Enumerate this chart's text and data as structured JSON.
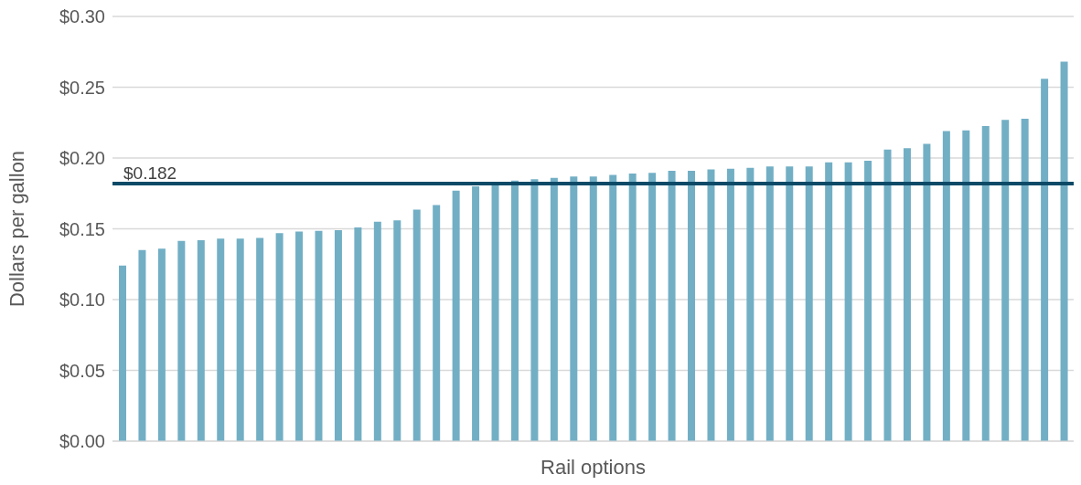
{
  "chart_data": {
    "type": "bar",
    "xlabel": "Rail options",
    "ylabel": "Dollars per gallon",
    "categories": [
      null,
      null,
      null,
      null,
      null,
      null,
      null,
      null,
      null,
      null,
      null,
      null,
      null,
      null,
      null,
      null,
      null,
      null,
      null,
      null,
      null,
      null,
      null,
      null,
      null,
      null,
      null,
      null,
      null,
      null,
      null,
      null,
      null,
      null,
      null,
      null,
      null,
      null,
      null,
      null,
      null,
      null,
      null,
      null,
      null,
      null,
      null,
      null,
      null
    ],
    "values": [
      0.124,
      0.135,
      0.136,
      0.1415,
      0.142,
      0.143,
      0.143,
      0.1435,
      0.147,
      0.148,
      0.1485,
      0.149,
      0.151,
      0.155,
      0.156,
      0.1635,
      0.1667,
      0.177,
      0.18,
      0.182,
      0.184,
      0.185,
      0.186,
      0.187,
      0.187,
      0.188,
      0.189,
      0.1895,
      0.191,
      0.191,
      0.192,
      0.1925,
      0.193,
      0.194,
      0.194,
      0.194,
      0.197,
      0.197,
      0.198,
      0.206,
      0.207,
      0.21,
      0.219,
      0.2195,
      0.2226,
      0.227,
      0.2277,
      0.256,
      0.268
    ],
    "color": "#72afc5",
    "ylim": [
      0,
      0.3
    ],
    "yticks": [
      {
        "value": 0,
        "label": "$0.00"
      },
      {
        "value": 0.05,
        "label": "$0.05"
      },
      {
        "value": 0.1,
        "label": "$0.10"
      },
      {
        "value": 0.15,
        "label": "$0.15"
      },
      {
        "value": 0.2,
        "label": "$0.20"
      },
      {
        "value": 0.25,
        "label": "$0.25"
      },
      {
        "value": 0.3,
        "label": "$0.30"
      }
    ],
    "grid": "y",
    "ref_lines": [
      {
        "axis": "y",
        "value": 0.182,
        "label": "$0.182",
        "color": "#0d4a67"
      }
    ]
  }
}
